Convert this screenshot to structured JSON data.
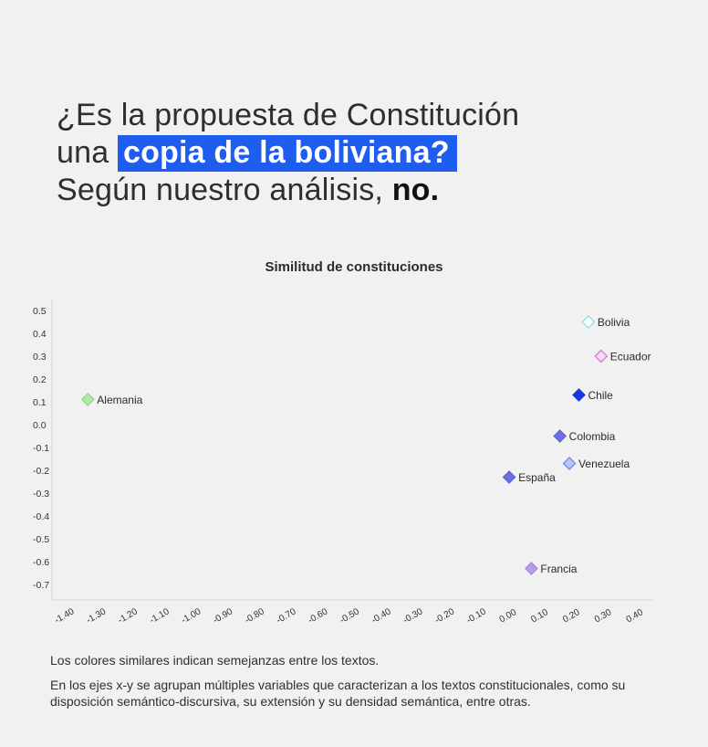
{
  "headline": {
    "line1": "¿Es la propuesta de Constitución",
    "line2_prefix": "una ",
    "line2_highlight": "copia de la boliviana?",
    "line3_prefix": "Según nuestro análisis, ",
    "line3_strong": "no."
  },
  "colors": {
    "background": "#f1f1f1",
    "highlight": "#1f5cf0"
  },
  "chart_data": {
    "type": "scatter",
    "title": "Similitud de constituciones",
    "xlabel": "",
    "ylabel": "",
    "xlim": [
      -1.4,
      0.4
    ],
    "ylim": [
      -0.7,
      0.5
    ],
    "x_ticks": [
      "-1.40",
      "-1.30",
      "-1.20",
      "-1.10",
      "-1.00",
      "-0.90",
      "-0.80",
      "-0.70",
      "-0.60",
      "-0.50",
      "-0.40",
      "-0.30",
      "-0.20",
      "-0.10",
      "0.00",
      "0.10",
      "0.20",
      "0.30",
      "0.40"
    ],
    "y_ticks": [
      "0.5",
      "0.4",
      "0.3",
      "0.2",
      "0.1",
      "0.0",
      "-0.1",
      "-0.2",
      "-0.3",
      "-0.4",
      "-0.5",
      "-0.6",
      "-0.7"
    ],
    "grid": false,
    "points": [
      {
        "label": "Bolivia",
        "x": 0.25,
        "y": 0.45,
        "fill": "#ffffff",
        "stroke": "#7fe0e0",
        "hollow": true
      },
      {
        "label": "Ecuador",
        "x": 0.29,
        "y": 0.3,
        "fill": "#f6d9f4",
        "stroke": "#d36fd0",
        "hollow": true
      },
      {
        "label": "Chile",
        "x": 0.22,
        "y": 0.13,
        "fill": "#1736e0",
        "stroke": "#1736e0",
        "hollow": false
      },
      {
        "label": "Alemania",
        "x": -1.33,
        "y": 0.11,
        "fill": "#b5e6ae",
        "stroke": "#8fd38a",
        "hollow": false
      },
      {
        "label": "Colombia",
        "x": 0.16,
        "y": -0.05,
        "fill": "#6a6fe6",
        "stroke": "#5a60da",
        "hollow": false
      },
      {
        "label": "Venezuela",
        "x": 0.19,
        "y": -0.17,
        "fill": "#b9c5f3",
        "stroke": "#6f7fe0",
        "hollow": false
      },
      {
        "label": "España",
        "x": 0.0,
        "y": -0.23,
        "fill": "#6a6fe6",
        "stroke": "#5a60da",
        "hollow": false
      },
      {
        "label": "Francia",
        "x": 0.07,
        "y": -0.63,
        "fill": "#b99be8",
        "stroke": "#a184df",
        "hollow": false
      }
    ]
  },
  "notes": {
    "note1": "Los colores similares indican semejanzas entre los textos.",
    "note2": "En los ejes x-y se agrupan múltiples variables que caracterizan a los textos constitucionales, como su disposición semántico-discursiva, su extensión y su densidad semántica, entre otras."
  }
}
